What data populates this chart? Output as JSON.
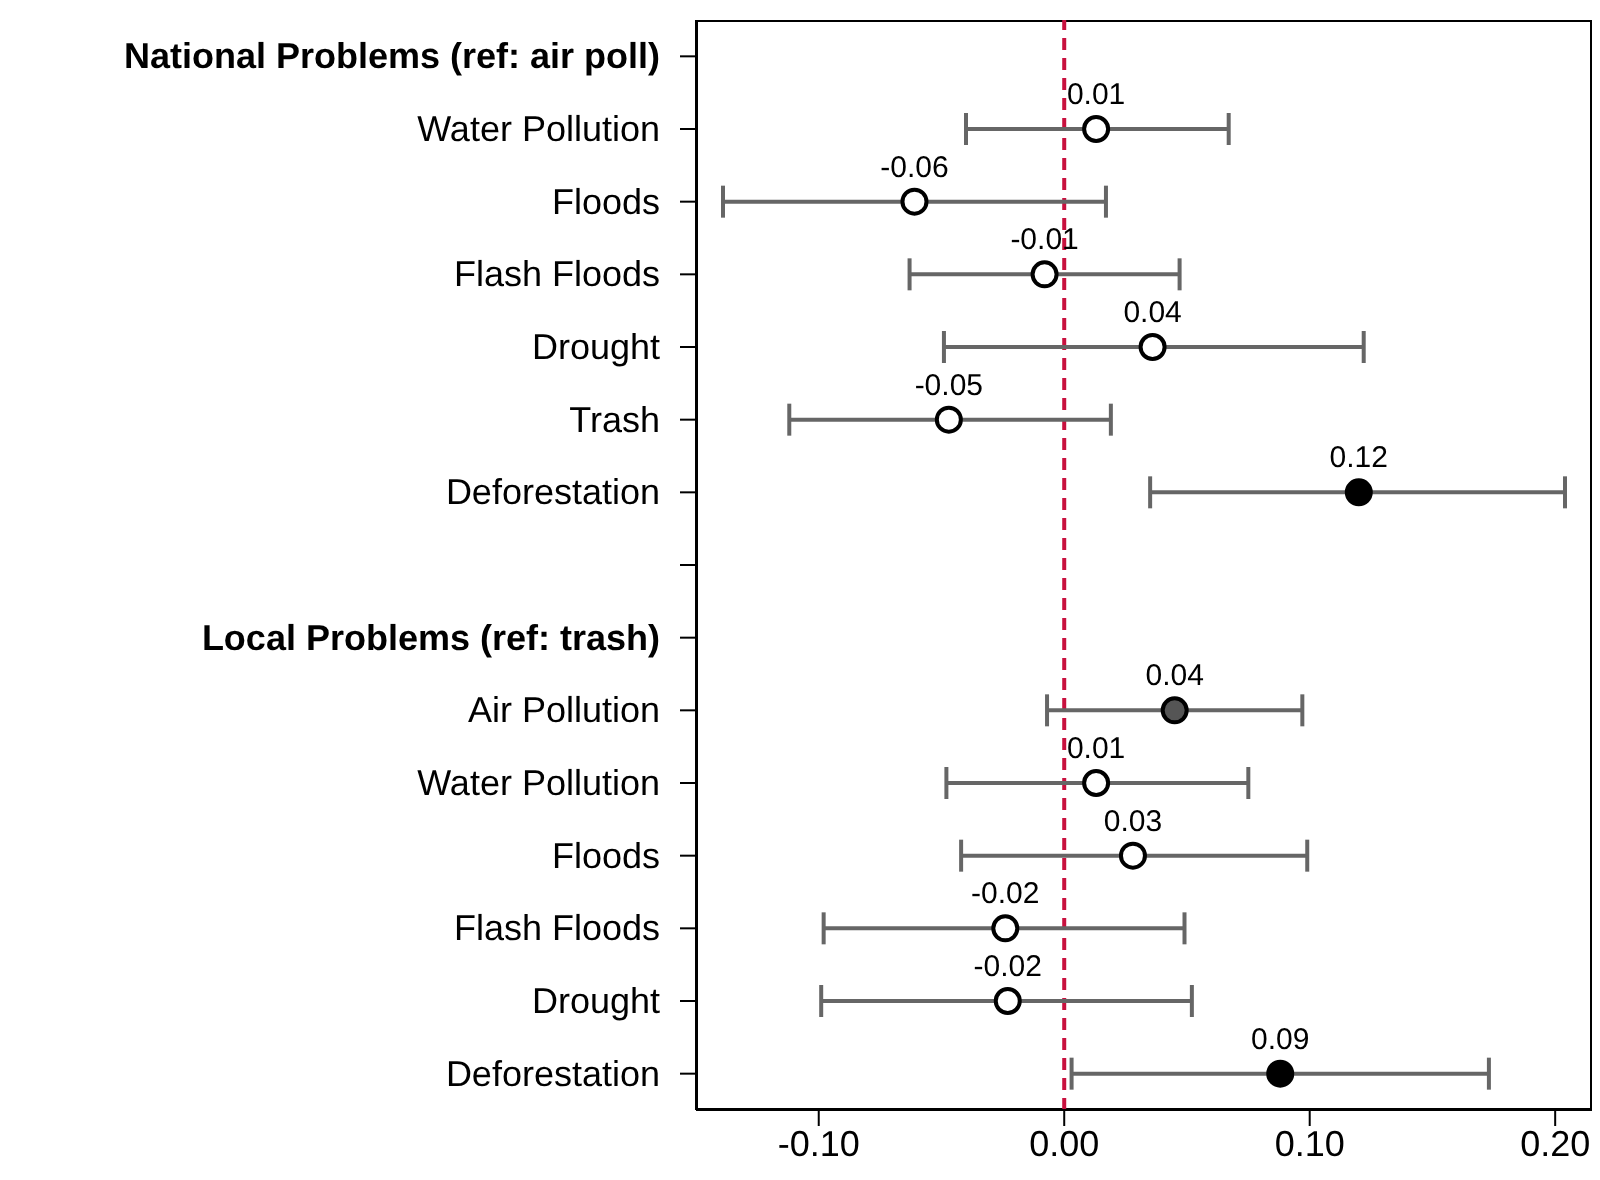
{
  "chart_data": {
    "type": "scatter",
    "orientation": "horizontal",
    "categories": [
      "National Problems (ref: air poll)",
      "Water Pollution",
      "Floods",
      "Flash Floods",
      "Drought",
      "Trash",
      "Deforestation",
      null,
      "Local Problems (ref: trash)",
      "Air Pollution",
      "Water Pollution",
      "Floods",
      "Flash Floods",
      "Drought",
      "Deforestation"
    ],
    "series": [
      {
        "color": "#000000",
        "values": [
          null,
          0.013,
          -0.061,
          -0.008,
          0.036,
          -0.047,
          0.12,
          null,
          null,
          0.045,
          0.013,
          0.028,
          -0.024,
          -0.023,
          0.088
        ],
        "errors": [
          null,
          [
            -0.04,
            0.067
          ],
          [
            -0.139,
            0.017
          ],
          [
            -0.063,
            0.047
          ],
          [
            -0.049,
            0.122
          ],
          [
            -0.112,
            0.019
          ],
          [
            0.035,
            0.204
          ],
          null,
          null,
          [
            -0.007,
            0.097
          ],
          [
            -0.048,
            0.075
          ],
          [
            -0.042,
            0.099
          ],
          [
            -0.098,
            0.049
          ],
          [
            -0.099,
            0.052
          ],
          [
            0.003,
            0.173
          ]
        ],
        "colors": [
          null,
          "#ffffff",
          "#ffffff",
          "#ffffff",
          "#ffffff",
          "#ffffff",
          "#000000",
          null,
          null,
          "#555555",
          "#ffffff",
          "#ffffff",
          "#ffffff",
          "#ffffff",
          "#000000"
        ],
        "value_labels": [
          null,
          "0.01",
          "-0.06",
          "-0.01",
          "0.04",
          "-0.05",
          "0.12",
          null,
          null,
          "0.04",
          "0.01",
          "0.03",
          "-0.02",
          "-0.02",
          "0.09"
        ]
      }
    ],
    "xlim": [
      -0.15,
      0.215
    ],
    "xticks": [
      {
        "value": -0.1,
        "label": "-0.10"
      },
      {
        "value": 0,
        "label": "0.00"
      },
      {
        "value": 0.1,
        "label": "0.10"
      },
      {
        "value": 0.2,
        "label": "0.20"
      }
    ],
    "ref_lines": [
      {
        "axis": "x",
        "value": 0,
        "color": "#c8103e",
        "line_style": "dashed"
      }
    ],
    "marker": "circle"
  }
}
